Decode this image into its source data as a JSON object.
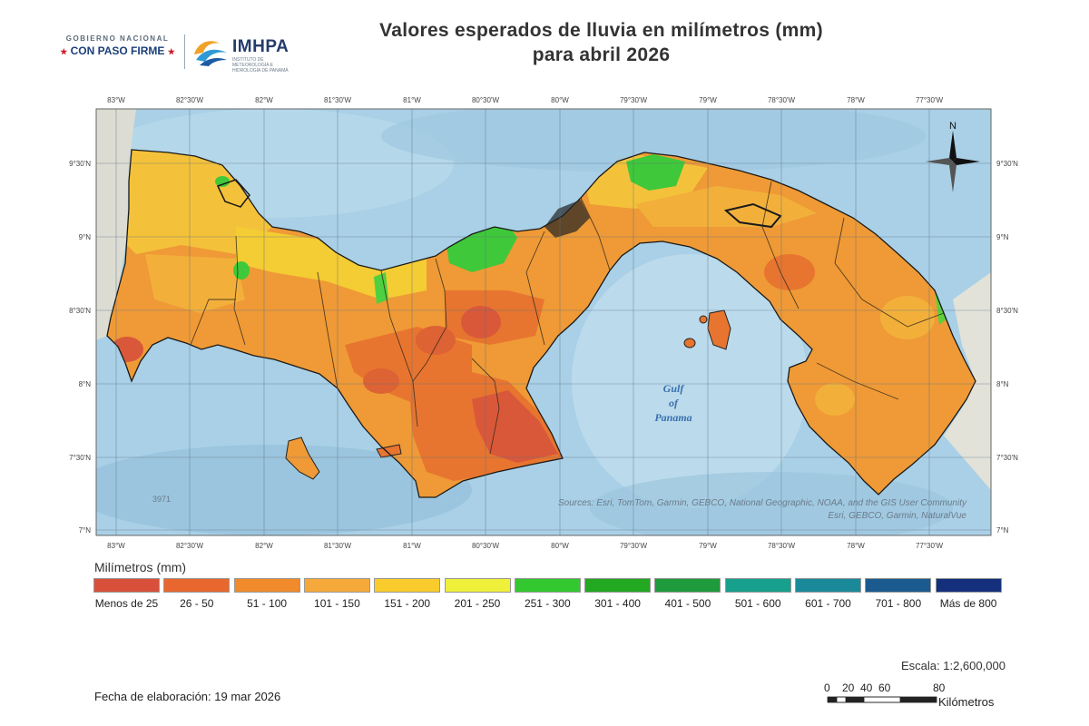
{
  "header": {
    "gov_line1": "GOBIERNO NACIONAL",
    "gov_line2": "CON PASO FIRME",
    "agency_name": "IMHPA",
    "agency_sub": "INSTITUTO DE METEOROLOGÍA E HIDROLOGÍA DE PANAMÁ",
    "title_line1": "Valores esperados de lluvia en milímetros (mm)",
    "title_line2": "para abril 2026"
  },
  "map": {
    "lon_labels": [
      "83°W",
      "82°30'W",
      "82°W",
      "81°30'W",
      "81°W",
      "80°30'W",
      "80°W",
      "79°30'W",
      "79°W",
      "78°30'W",
      "78°W",
      "77°30'W"
    ],
    "lat_labels": [
      "9°30'N",
      "9°N",
      "8°30'N",
      "8°N",
      "7°30'N",
      "7°N"
    ],
    "gulf_label": [
      "Gulf",
      "of",
      "Panama"
    ],
    "source_line1": "Sources: Esri, TomTom, Garmin, GEBCO, National Geographic, NOAA, and the GIS User Community",
    "source_line2": "Esri, GEBCO, Garmin, NaturalVue",
    "depth_label": "3971",
    "north_label": "N",
    "colors": {
      "ocean": "#a9d0e6",
      "land_other": "#e4e4dc",
      "dry_red": "#d9583a",
      "dark_orange": "#e7752f",
      "orange": "#ef9a36",
      "light_orange": "#f2b03b",
      "yellow": "#f4cc33",
      "green": "#3fc83a"
    }
  },
  "legend": {
    "title": "Milímetros (mm)",
    "classes": [
      {
        "label": "Menos de 25",
        "color": "#d9503a"
      },
      {
        "label": "26 - 50",
        "color": "#e8672e"
      },
      {
        "label": "51 - 100",
        "color": "#f08a2a"
      },
      {
        "label": "101 - 150",
        "color": "#f5a93a"
      },
      {
        "label": "151 - 200",
        "color": "#f9cb2c"
      },
      {
        "label": "201 - 250",
        "color": "#eef03a"
      },
      {
        "label": "251 - 300",
        "color": "#33c82f"
      },
      {
        "label": "301 - 400",
        "color": "#22a821"
      },
      {
        "label": "401 - 500",
        "color": "#1f9a3d"
      },
      {
        "label": "501 - 600",
        "color": "#17a08d"
      },
      {
        "label": "601 - 700",
        "color": "#1a8a9a"
      },
      {
        "label": "701 - 800",
        "color": "#1b5a8e"
      },
      {
        "label": "Más de 800",
        "color": "#14307c"
      }
    ]
  },
  "footer": {
    "scale_text": "Escala: 1:2,600,000",
    "date_text": "Fecha de elaboración: 19 mar 2026",
    "scale_ticks": [
      "0",
      "20",
      "40",
      "60",
      "80"
    ],
    "scale_unit": "Kilómetros"
  }
}
